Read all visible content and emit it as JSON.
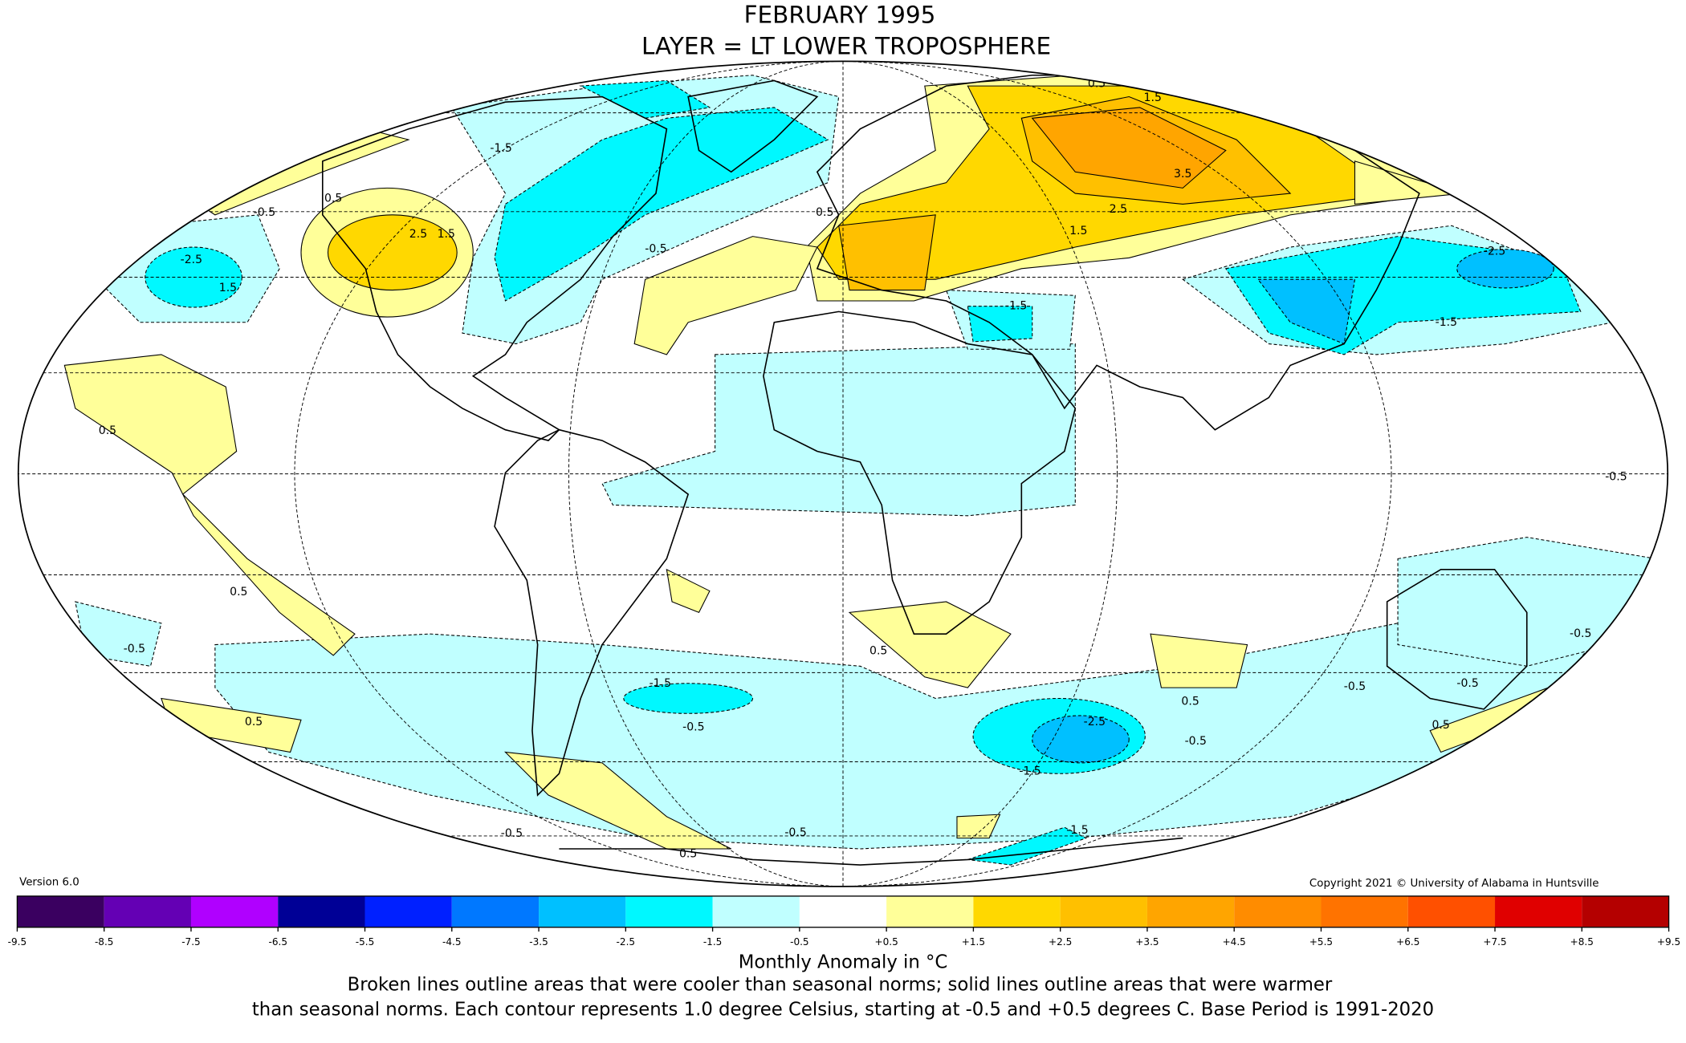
{
  "header": {
    "title": "FEBRUARY 1995",
    "subtitle": "LAYER = LT LOWER TROPOSPHERE"
  },
  "version": "Version 6.0",
  "copyright": "Copyright 2021 © University of Alabama in Huntsville",
  "contour_labels": [
    "0.5",
    "1.5",
    "-1.5",
    "3.5",
    "0.5",
    "-0.5",
    "2.5",
    "1.5",
    "0.5",
    "-0.5",
    "2.5",
    "1.5",
    "-2.5",
    "1.5",
    "-2.5",
    "-1.5",
    "-1.5",
    "0.5",
    "-0.5",
    "0.5",
    "-0.5",
    "0.5",
    "0.5",
    "-1.5",
    "-0.5",
    "-0.5",
    "-0.5",
    "0.5",
    "-0.5",
    "-2.5",
    "-0.5",
    "-1.5",
    "0.5",
    "-0.5",
    "0.5",
    "-0.5",
    "-1.5"
  ],
  "colorbar": {
    "ticks": [
      -9.5,
      -8.5,
      -7.5,
      -6.5,
      -5.5,
      -4.5,
      -3.5,
      -2.5,
      -1.5,
      -0.5,
      {
        "value": 0.5,
        "label": "+0.5"
      },
      {
        "value": 1.5,
        "label": "+1.5"
      },
      {
        "value": 2.5,
        "label": "+2.5"
      },
      {
        "value": 3.5,
        "label": "+3.5"
      },
      {
        "value": 4.5,
        "label": "+4.5"
      },
      {
        "value": 5.5,
        "label": "+5.5"
      },
      {
        "value": 6.5,
        "label": "+6.5"
      },
      {
        "value": 7.5,
        "label": "+7.5"
      },
      {
        "value": 8.5,
        "label": "+8.5"
      },
      {
        "value": 9.5,
        "label": "+9.5"
      }
    ],
    "colors": [
      "#3a0060",
      "#6400b4",
      "#b000ff",
      "#000096",
      "#0020ff",
      "#0078ff",
      "#00c0ff",
      "#00f8ff",
      "#c0ffff",
      "#ffffff",
      "#ffff99",
      "#ffd800",
      "#ffc000",
      "#ffa500",
      "#ff8c00",
      "#ff7300",
      "#ff5000",
      "#e00000",
      "#b40000"
    ],
    "label": "Monthly Anomaly in °C"
  },
  "caption": [
    "Broken lines outline areas that were cooler than seasonal norms; solid lines outline areas that were warmer",
    "than seasonal norms. Each contour represents 1.0 degree Celsius, starting at -0.5 and +0.5 degrees C. Base Period is 1991-2020"
  ]
}
